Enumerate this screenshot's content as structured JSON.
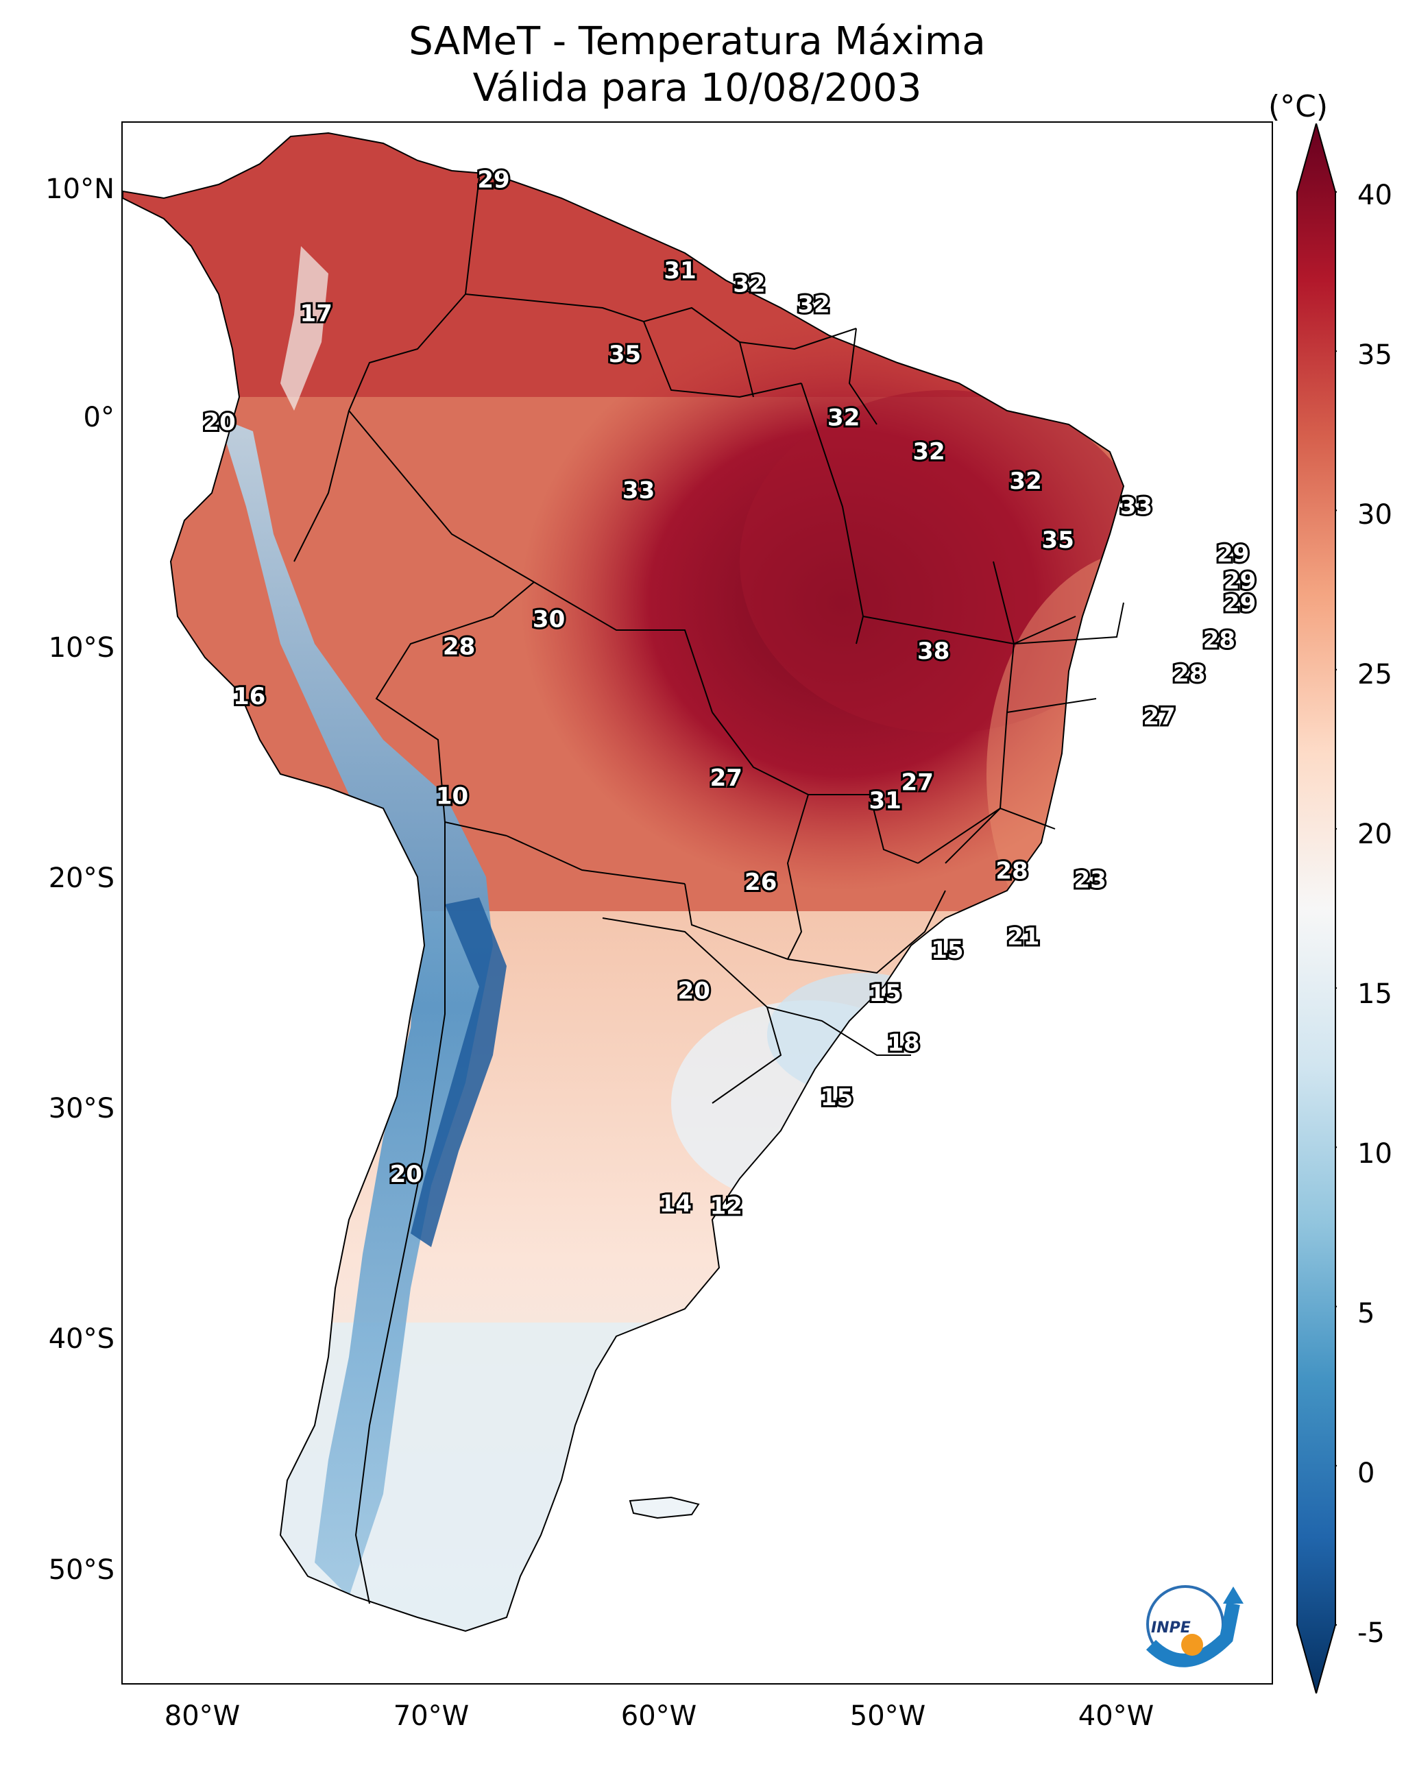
{
  "title": "SAMeT - Temperatura Máxima",
  "subtitle": "Válida para 10/08/2003",
  "colorbar": {
    "unit": "(°C)",
    "ticks": [
      "40",
      "35",
      "30",
      "25",
      "20",
      "15",
      "10",
      "5",
      "0",
      "-5"
    ],
    "range": [
      -5,
      40
    ],
    "colors": [
      "#053061",
      "#2166ac",
      "#4393c3",
      "#92c5de",
      "#d1e5f0",
      "#f7f7f7",
      "#fddbc7",
      "#f4a582",
      "#d6604d",
      "#b2182b",
      "#67001f"
    ]
  },
  "axes": {
    "lat_ticks": [
      "10°N",
      "0°",
      "10°S",
      "20°S",
      "30°S",
      "40°S",
      "50°S"
    ],
    "lon_ticks": [
      "80°W",
      "70°W",
      "60°W",
      "50°W",
      "40°W"
    ]
  },
  "map": {
    "region": "South America",
    "lon_range": [
      -83,
      -33
    ],
    "lat_range": [
      -56,
      13
    ],
    "labels": [
      {
        "text": "29",
        "lon": -66.9,
        "lat": 10.5
      },
      {
        "text": "31",
        "lon": -58.8,
        "lat": 6.5
      },
      {
        "text": "32",
        "lon": -55.8,
        "lat": 5.9
      },
      {
        "text": "32",
        "lon": -53.0,
        "lat": 5.0
      },
      {
        "text": "17",
        "lon": -74.6,
        "lat": 4.6
      },
      {
        "text": "35",
        "lon": -61.2,
        "lat": 2.8
      },
      {
        "text": "32",
        "lon": -51.7,
        "lat": 0.0
      },
      {
        "text": "20",
        "lon": -78.8,
        "lat": -0.2
      },
      {
        "text": "32",
        "lon": -48.0,
        "lat": -1.5
      },
      {
        "text": "32",
        "lon": -43.8,
        "lat": -2.8
      },
      {
        "text": "33",
        "lon": -60.6,
        "lat": -3.2
      },
      {
        "text": "33",
        "lon": -39.0,
        "lat": -3.9
      },
      {
        "text": "35",
        "lon": -42.4,
        "lat": -5.4
      },
      {
        "text": "29",
        "lon": -34.8,
        "lat": -6.0
      },
      {
        "text": "29",
        "lon": -34.5,
        "lat": -7.2
      },
      {
        "text": "29",
        "lon": -34.5,
        "lat": -8.2
      },
      {
        "text": "30",
        "lon": -64.5,
        "lat": -8.9
      },
      {
        "text": "28",
        "lon": -35.4,
        "lat": -9.8
      },
      {
        "text": "28",
        "lon": -68.4,
        "lat": -10.1
      },
      {
        "text": "38",
        "lon": -47.8,
        "lat": -10.3
      },
      {
        "text": "28",
        "lon": -36.7,
        "lat": -11.3
      },
      {
        "text": "16",
        "lon": -77.5,
        "lat": -12.3
      },
      {
        "text": "27",
        "lon": -38.0,
        "lat": -13.2
      },
      {
        "text": "27",
        "lon": -56.8,
        "lat": -15.9
      },
      {
        "text": "27",
        "lon": -48.5,
        "lat": -16.1
      },
      {
        "text": "10",
        "lon": -68.7,
        "lat": -16.7
      },
      {
        "text": "31",
        "lon": -49.9,
        "lat": -16.9
      },
      {
        "text": "28",
        "lon": -44.4,
        "lat": -20.0
      },
      {
        "text": "26",
        "lon": -55.3,
        "lat": -20.5
      },
      {
        "text": "23",
        "lon": -41.0,
        "lat": -20.4
      },
      {
        "text": "21",
        "lon": -43.9,
        "lat": -22.9
      },
      {
        "text": "15",
        "lon": -47.2,
        "lat": -23.5
      },
      {
        "text": "20",
        "lon": -58.2,
        "lat": -25.3
      },
      {
        "text": "15",
        "lon": -49.9,
        "lat": -25.4
      },
      {
        "text": "18",
        "lon": -49.1,
        "lat": -27.6
      },
      {
        "text": "15",
        "lon": -52.0,
        "lat": -30.0
      },
      {
        "text": "20",
        "lon": -70.7,
        "lat": -33.4
      },
      {
        "text": "14",
        "lon": -59.0,
        "lat": -34.7
      },
      {
        "text": "12",
        "lon": -56.8,
        "lat": -34.8
      }
    ]
  },
  "logo": {
    "text": "INPE"
  }
}
